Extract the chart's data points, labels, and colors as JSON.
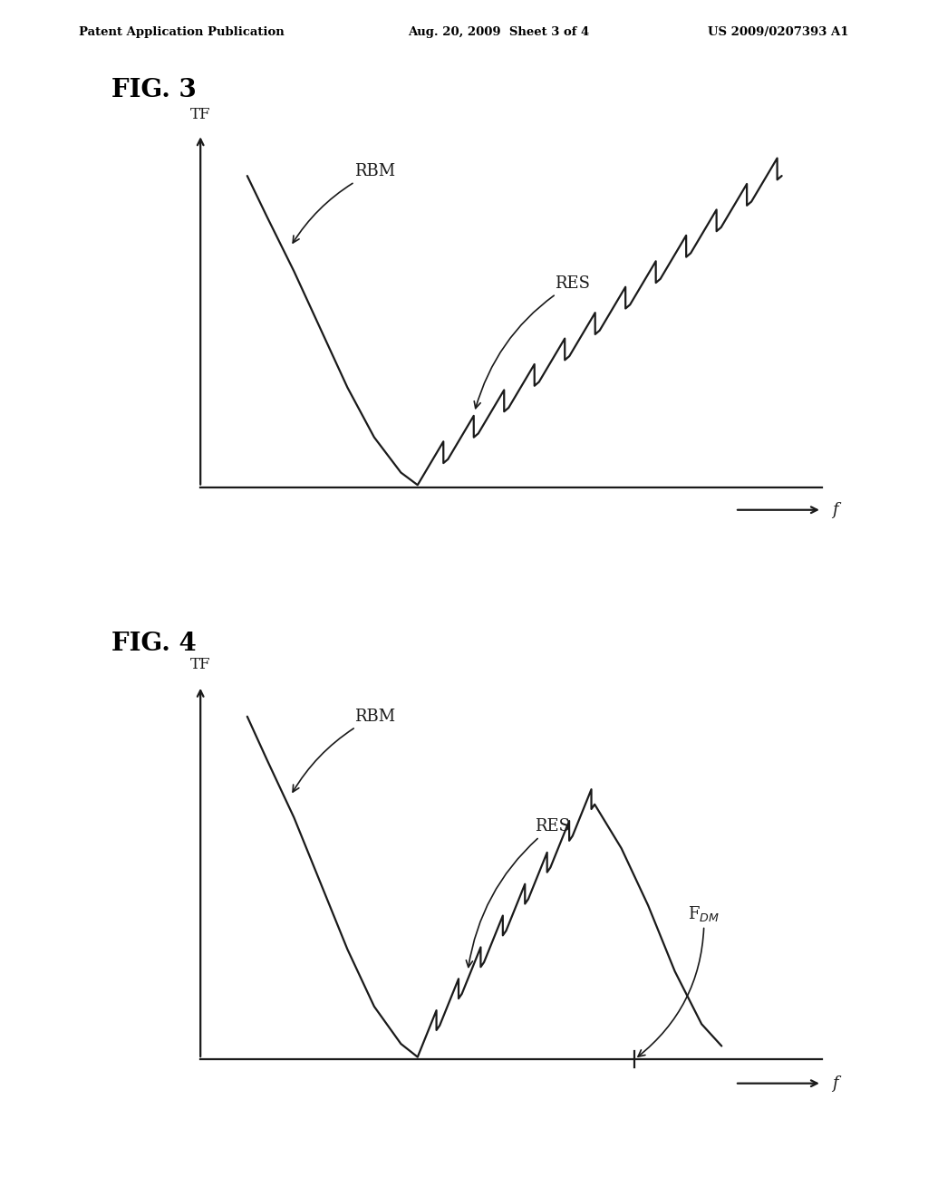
{
  "header_left": "Patent Application Publication",
  "header_center": "Aug. 20, 2009  Sheet 3 of 4",
  "header_right": "US 2009/0207393 A1",
  "fig3_title": "FIG. 3",
  "fig4_title": "FIG. 4",
  "bg_color": "#ffffff",
  "line_color": "#1a1a1a",
  "text_color": "#000000",
  "header_fontsize": 9.5,
  "fig_label_fontsize": 20,
  "axis_label_fontsize": 13,
  "annotation_fontsize": 13
}
